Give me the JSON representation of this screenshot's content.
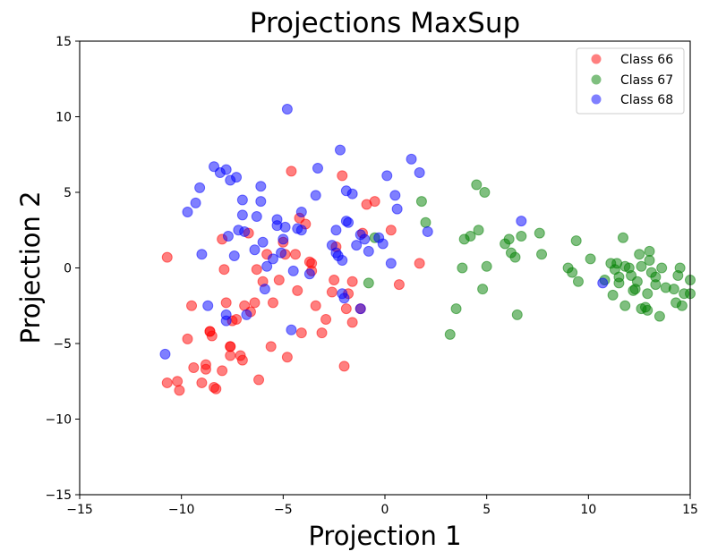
{
  "chart_data": {
    "type": "scatter",
    "title": "Projections MaxSup",
    "xlabel": "Projection 1",
    "ylabel": "Projection 2",
    "xlim": [
      -15,
      15
    ],
    "ylim": [
      -15,
      15
    ],
    "xticks": [
      -15,
      -10,
      -5,
      0,
      5,
      10,
      15
    ],
    "yticks": [
      -15,
      -10,
      -5,
      0,
      5,
      10,
      15
    ],
    "xtick_labels": [
      "−15",
      "−10",
      "−5",
      "0",
      "5",
      "10",
      "15"
    ],
    "ytick_labels": [
      "−15",
      "−10",
      "−5",
      "0",
      "5",
      "10",
      "15"
    ],
    "grid": false,
    "legend_position": "top-right",
    "series": [
      {
        "name": "Class 66",
        "color": "#ff0000",
        "points": [
          [
            -10.7,
            0.7
          ],
          [
            -10.7,
            -7.6
          ],
          [
            -10.2,
            -7.5
          ],
          [
            -10.1,
            -8.1
          ],
          [
            -9.7,
            -4.7
          ],
          [
            -9.5,
            -2.5
          ],
          [
            -9.4,
            -6.6
          ],
          [
            -9.0,
            -7.6
          ],
          [
            -8.8,
            -6.4
          ],
          [
            -8.8,
            -6.7
          ],
          [
            -8.6,
            -4.2
          ],
          [
            -8.6,
            -4.2
          ],
          [
            -8.5,
            -4.5
          ],
          [
            -8.4,
            -7.9
          ],
          [
            -8.3,
            -8.0
          ],
          [
            -8.0,
            -6.8
          ],
          [
            -8.0,
            1.9
          ],
          [
            -7.9,
            -0.1
          ],
          [
            -7.8,
            -2.3
          ],
          [
            -7.6,
            -5.2
          ],
          [
            -7.6,
            -5.2
          ],
          [
            -7.6,
            -5.8
          ],
          [
            -7.5,
            -3.5
          ],
          [
            -7.3,
            -3.4
          ],
          [
            -7.1,
            -5.8
          ],
          [
            -7.0,
            -6.1
          ],
          [
            -6.9,
            -2.5
          ],
          [
            -6.7,
            2.3
          ],
          [
            -6.6,
            -2.9
          ],
          [
            -6.4,
            -2.3
          ],
          [
            -6.3,
            -0.1
          ],
          [
            -6.2,
            -7.4
          ],
          [
            -6.0,
            -0.9
          ],
          [
            -5.8,
            0.9
          ],
          [
            -5.6,
            -5.2
          ],
          [
            -5.5,
            -2.3
          ],
          [
            -5.2,
            -0.8
          ],
          [
            -5.0,
            1.7
          ],
          [
            -4.9,
            0.9
          ],
          [
            -4.8,
            -5.9
          ],
          [
            -4.6,
            6.4
          ],
          [
            -4.4,
            0.9
          ],
          [
            -4.3,
            -1.5
          ],
          [
            -4.2,
            3.3
          ],
          [
            -4.1,
            -4.3
          ],
          [
            -3.9,
            2.9
          ],
          [
            -3.7,
            0.4
          ],
          [
            -3.6,
            -0.2
          ],
          [
            -3.6,
            0.3
          ],
          [
            -3.4,
            -2.5
          ],
          [
            -3.1,
            -4.3
          ],
          [
            -2.9,
            -3.4
          ],
          [
            -2.6,
            -1.6
          ],
          [
            -2.5,
            -0.8
          ],
          [
            -2.4,
            1.4
          ],
          [
            -2.1,
            6.1
          ],
          [
            -2.0,
            -6.5
          ],
          [
            -1.9,
            -2.7
          ],
          [
            -1.8,
            -1.7
          ],
          [
            -1.6,
            -3.6
          ],
          [
            -1.6,
            -0.9
          ],
          [
            -1.2,
            -2.7
          ],
          [
            -1.1,
            2.3
          ],
          [
            -0.9,
            4.2
          ],
          [
            -0.5,
            4.4
          ],
          [
            0.3,
            2.5
          ],
          [
            0.7,
            -1.1
          ],
          [
            1.7,
            0.3
          ]
        ]
      },
      {
        "name": "Class 67",
        "color": "#008000",
        "points": [
          [
            -0.8,
            -1.0
          ],
          [
            -0.5,
            2.0
          ],
          [
            1.8,
            4.4
          ],
          [
            2.0,
            3.0
          ],
          [
            3.2,
            -4.4
          ],
          [
            3.5,
            -2.7
          ],
          [
            3.8,
            0.0
          ],
          [
            3.9,
            1.9
          ],
          [
            4.2,
            2.1
          ],
          [
            4.5,
            5.5
          ],
          [
            4.6,
            2.5
          ],
          [
            4.8,
            -1.4
          ],
          [
            4.9,
            5.0
          ],
          [
            5.0,
            0.1
          ],
          [
            5.9,
            1.6
          ],
          [
            6.1,
            1.9
          ],
          [
            6.2,
            1.0
          ],
          [
            6.4,
            0.7
          ],
          [
            6.5,
            -3.1
          ],
          [
            6.7,
            2.1
          ],
          [
            7.6,
            2.3
          ],
          [
            7.7,
            0.9
          ],
          [
            9.0,
            0.0
          ],
          [
            9.2,
            -0.3
          ],
          [
            9.4,
            1.8
          ],
          [
            9.5,
            -0.9
          ],
          [
            10.1,
            0.6
          ],
          [
            10.8,
            -0.8
          ],
          [
            11.1,
            0.3
          ],
          [
            11.2,
            -1.8
          ],
          [
            11.3,
            -0.1
          ],
          [
            11.4,
            0.3
          ],
          [
            11.5,
            -1.0
          ],
          [
            11.5,
            -0.6
          ],
          [
            11.7,
            2.0
          ],
          [
            11.8,
            -2.5
          ],
          [
            11.8,
            0.1
          ],
          [
            12.0,
            0.0
          ],
          [
            12.1,
            -0.5
          ],
          [
            12.2,
            -1.5
          ],
          [
            12.3,
            -1.4
          ],
          [
            12.4,
            -0.9
          ],
          [
            12.5,
            0.9
          ],
          [
            12.6,
            0.1
          ],
          [
            12.6,
            -2.7
          ],
          [
            12.8,
            -2.6
          ],
          [
            12.9,
            -2.8
          ],
          [
            12.9,
            -1.7
          ],
          [
            13.0,
            1.1
          ],
          [
            13.0,
            0.5
          ],
          [
            13.1,
            -0.3
          ],
          [
            13.3,
            -1.1
          ],
          [
            13.3,
            -0.6
          ],
          [
            13.5,
            -3.2
          ],
          [
            13.6,
            0.0
          ],
          [
            13.8,
            -1.3
          ],
          [
            14.2,
            -1.4
          ],
          [
            14.3,
            -2.3
          ],
          [
            14.4,
            -0.5
          ],
          [
            14.5,
            0.0
          ],
          [
            14.6,
            -2.5
          ],
          [
            14.7,
            -1.7
          ],
          [
            15.0,
            -0.8
          ],
          [
            15.0,
            -1.7
          ]
        ]
      },
      {
        "name": "Class 68",
        "color": "#0000ff",
        "points": [
          [
            -10.8,
            -5.7
          ],
          [
            -9.7,
            3.7
          ],
          [
            -9.3,
            4.3
          ],
          [
            -9.1,
            5.3
          ],
          [
            -9.0,
            0.9
          ],
          [
            -8.7,
            -2.5
          ],
          [
            -8.4,
            6.7
          ],
          [
            -8.1,
            6.3
          ],
          [
            -7.8,
            6.5
          ],
          [
            -7.8,
            -3.5
          ],
          [
            -7.8,
            -3.1
          ],
          [
            -7.7,
            2.1
          ],
          [
            -7.6,
            5.8
          ],
          [
            -7.4,
            0.8
          ],
          [
            -7.3,
            6.0
          ],
          [
            -7.2,
            2.5
          ],
          [
            -7.0,
            4.5
          ],
          [
            -7.0,
            3.5
          ],
          [
            -6.9,
            2.4
          ],
          [
            -6.8,
            -3.1
          ],
          [
            -6.4,
            1.2
          ],
          [
            -6.3,
            3.4
          ],
          [
            -6.1,
            5.4
          ],
          [
            -6.1,
            4.4
          ],
          [
            -6.0,
            1.7
          ],
          [
            -5.9,
            -1.4
          ],
          [
            -5.8,
            0.1
          ],
          [
            -5.5,
            0.6
          ],
          [
            -5.3,
            2.8
          ],
          [
            -5.3,
            3.2
          ],
          [
            -5.1,
            1.0
          ],
          [
            -5.0,
            1.9
          ],
          [
            -4.9,
            2.7
          ],
          [
            -4.8,
            10.5
          ],
          [
            -4.6,
            -4.1
          ],
          [
            -4.5,
            -0.2
          ],
          [
            -4.3,
            2.6
          ],
          [
            -4.1,
            3.7
          ],
          [
            -4.1,
            2.5
          ],
          [
            -3.7,
            -0.4
          ],
          [
            -3.4,
            4.8
          ],
          [
            -3.3,
            6.6
          ],
          [
            -2.6,
            1.5
          ],
          [
            -2.4,
            2.5
          ],
          [
            -2.4,
            1.0
          ],
          [
            -2.3,
            0.8
          ],
          [
            -2.2,
            7.8
          ],
          [
            -2.1,
            0.5
          ],
          [
            -2.1,
            -1.7
          ],
          [
            -2.0,
            -2.0
          ],
          [
            -1.9,
            5.1
          ],
          [
            -1.9,
            3.1
          ],
          [
            -1.8,
            3.0
          ],
          [
            -1.6,
            4.9
          ],
          [
            -1.4,
            1.5
          ],
          [
            -1.2,
            2.2
          ],
          [
            -1.2,
            -2.7
          ],
          [
            -1.0,
            1.9
          ],
          [
            -0.8,
            1.1
          ],
          [
            -0.3,
            2.0
          ],
          [
            -0.1,
            1.6
          ],
          [
            0.1,
            6.1
          ],
          [
            0.3,
            0.3
          ],
          [
            0.5,
            4.8
          ],
          [
            0.6,
            3.9
          ],
          [
            1.3,
            7.2
          ],
          [
            1.7,
            6.3
          ],
          [
            2.1,
            2.4
          ],
          [
            6.7,
            3.1
          ],
          [
            10.7,
            -1.0
          ]
        ]
      }
    ]
  }
}
